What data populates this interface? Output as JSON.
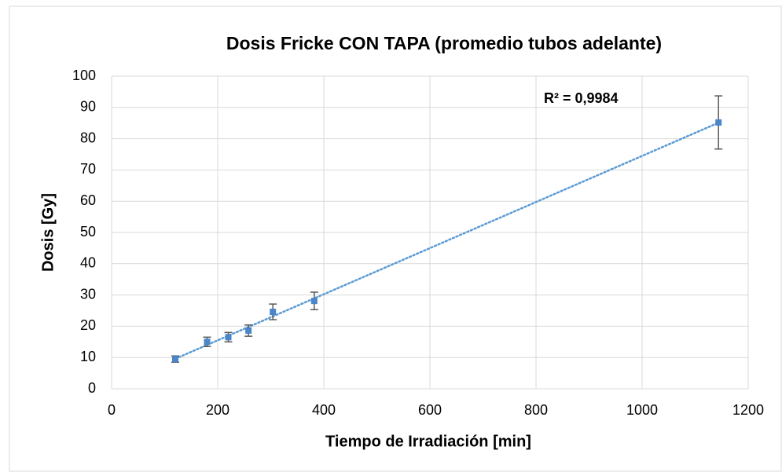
{
  "chart_data": {
    "type": "scatter",
    "title": "Dosis Fricke CON TAPA (promedio tubos adelante)",
    "x_label": "Tiempo de Irradiación [min]",
    "y_label": "Dosis [Gy]",
    "annotation": "R² = 0,9984",
    "series": [
      {
        "color": "#4a86c8",
        "x": [
          120,
          180,
          220,
          258,
          304,
          382,
          1144
        ],
        "values": [
          9.5,
          15,
          16.5,
          18.6,
          24.6,
          28.1,
          85.2
        ],
        "errors": [
          1,
          1.5,
          1.5,
          1.8,
          2.5,
          2.8,
          8.5
        ]
      }
    ],
    "trendline": {
      "type": "linear",
      "color": "#5b9bd5"
    },
    "xlim": [
      0,
      1200
    ],
    "xticks": [
      0,
      200,
      400,
      600,
      800,
      1000,
      1200
    ],
    "ylim": [
      0,
      100
    ],
    "yticks": [
      0,
      10,
      20,
      30,
      40,
      50,
      60,
      70,
      80,
      90,
      100
    ],
    "grid": true
  }
}
